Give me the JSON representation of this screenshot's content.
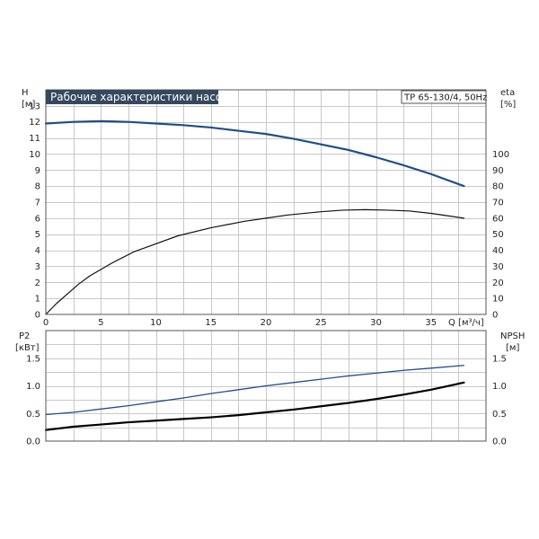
{
  "chart_data": [
    {
      "type": "line",
      "title": "Рабочие характеристики насоса",
      "model": "TP 65-130/4, 50Hz",
      "xlabel": "Q [м³/ч]",
      "ylabel_left": [
        "H",
        "[м]"
      ],
      "ylabel_right": [
        "eta",
        "[%]"
      ],
      "xlim": [
        0,
        40
      ],
      "ylim_left": [
        0,
        14
      ],
      "ylim_right": [
        0,
        140
      ],
      "x_ticks": [
        0,
        5,
        10,
        15,
        20,
        25,
        30,
        35
      ],
      "y_ticks_left": [
        0,
        1,
        2,
        3,
        4,
        5,
        6,
        7,
        8,
        9,
        10,
        11,
        12,
        13
      ],
      "y_ticks_right": [
        0,
        10,
        20,
        30,
        40,
        50,
        60,
        70,
        80,
        90,
        100
      ],
      "grid": true,
      "colors": {
        "H": "#1f4e8c",
        "eta": "#111111"
      },
      "series": [
        {
          "key": "H",
          "axis": "left",
          "x": [
            0,
            2.5,
            5,
            7.5,
            10,
            12.5,
            15,
            17.5,
            20,
            22.5,
            25,
            27.5,
            30,
            32.5,
            35,
            38
          ],
          "values": [
            11.9,
            12.0,
            12.05,
            12.0,
            11.9,
            11.8,
            11.65,
            11.45,
            11.25,
            10.95,
            10.6,
            10.25,
            9.8,
            9.3,
            8.75,
            8.0
          ]
        },
        {
          "key": "eta",
          "axis": "right",
          "x": [
            0,
            1,
            2,
            3,
            4,
            5,
            6,
            8,
            10,
            12,
            15,
            18,
            20,
            22,
            25,
            27,
            29,
            31,
            33,
            35,
            38
          ],
          "values": [
            0,
            7,
            13,
            19,
            24,
            28,
            32,
            39,
            44,
            49,
            54,
            58,
            60,
            62,
            64,
            65,
            65.3,
            65,
            64.5,
            63,
            60
          ]
        }
      ]
    },
    {
      "type": "line",
      "ylabel_left": [
        "P2",
        "[кВт]"
      ],
      "ylabel_right": [
        "NPSH",
        "[м]"
      ],
      "xlim": [
        0,
        40
      ],
      "ylim_left": [
        0,
        2
      ],
      "ylim_right": [
        0,
        2
      ],
      "y_ticks_left": [
        0.0,
        0.5,
        1.0,
        1.5
      ],
      "y_ticks_right": [
        0.0,
        0.5,
        1.0,
        1.5
      ],
      "y_tick_labels": [
        "0.0",
        "0.5",
        "1.0",
        "1.5"
      ],
      "grid": true,
      "colors": {
        "P2": "#1f4e8c",
        "NPSH": "#000000"
      },
      "series": [
        {
          "key": "P2",
          "axis": "left",
          "x": [
            0,
            2.5,
            5,
            7.5,
            10,
            12.5,
            15,
            17.5,
            20,
            22.5,
            25,
            27.5,
            30,
            32.5,
            35,
            38
          ],
          "values": [
            0.48,
            0.52,
            0.58,
            0.64,
            0.71,
            0.78,
            0.86,
            0.93,
            1.0,
            1.06,
            1.12,
            1.18,
            1.23,
            1.28,
            1.32,
            1.37
          ]
        },
        {
          "key": "NPSH",
          "axis": "right",
          "x": [
            0,
            2.5,
            5,
            7.5,
            10,
            12.5,
            15,
            17.5,
            20,
            22.5,
            25,
            27.5,
            30,
            32.5,
            35,
            38
          ],
          "values": [
            0.2,
            0.26,
            0.3,
            0.34,
            0.37,
            0.4,
            0.43,
            0.47,
            0.52,
            0.57,
            0.63,
            0.69,
            0.76,
            0.84,
            0.93,
            1.06
          ]
        }
      ]
    }
  ]
}
